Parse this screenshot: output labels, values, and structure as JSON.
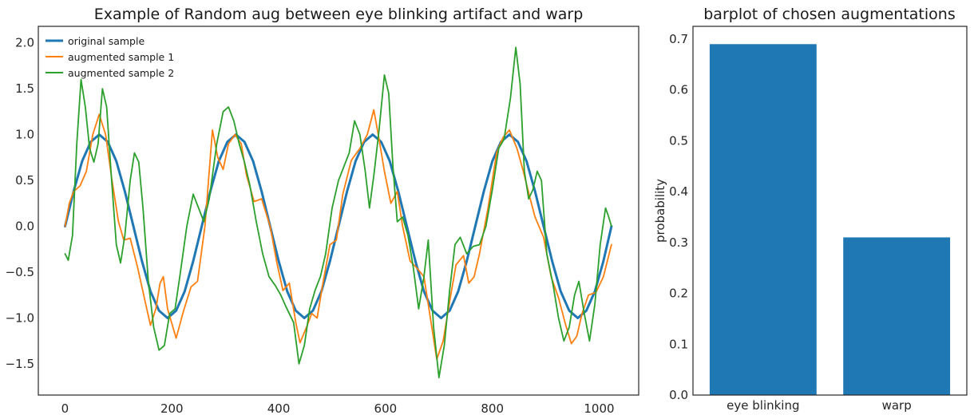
{
  "chart_data": [
    {
      "type": "line",
      "title": "Example of Random aug between eye blinking artifact and warp",
      "xlabel": "",
      "ylabel": "",
      "xlim": [
        -50,
        1074
      ],
      "ylim": [
        -1.84,
        2.18
      ],
      "xticks": [
        0,
        200,
        400,
        600,
        800,
        1000
      ],
      "xtick_labels": [
        "0",
        "200",
        "400",
        "600",
        "800",
        "1000"
      ],
      "yticks": [
        -1.5,
        -1.0,
        -0.5,
        0.0,
        0.5,
        1.0,
        1.5,
        2.0
      ],
      "ytick_labels": [
        "−1.5",
        "−1.0",
        "−0.5",
        "0.0",
        "0.5",
        "1.0",
        "1.5",
        "2.0"
      ],
      "grid": false,
      "legend_position": "top-left",
      "series": [
        {
          "name": "original sample",
          "color": "#1f77b4",
          "points": [
            [
              0,
              0.0
            ],
            [
              16,
              0.38
            ],
            [
              32,
              0.71
            ],
            [
              48,
              0.92
            ],
            [
              64,
              1.0
            ],
            [
              80,
              0.92
            ],
            [
              96,
              0.71
            ],
            [
              112,
              0.38
            ],
            [
              128,
              0.0
            ],
            [
              144,
              -0.38
            ],
            [
              160,
              -0.71
            ],
            [
              176,
              -0.92
            ],
            [
              192,
              -1.0
            ],
            [
              208,
              -0.92
            ],
            [
              224,
              -0.71
            ],
            [
              240,
              -0.38
            ],
            [
              256,
              0.0
            ],
            [
              272,
              0.38
            ],
            [
              288,
              0.71
            ],
            [
              304,
              0.92
            ],
            [
              320,
              1.0
            ],
            [
              336,
              0.92
            ],
            [
              352,
              0.71
            ],
            [
              368,
              0.38
            ],
            [
              384,
              0.0
            ],
            [
              400,
              -0.38
            ],
            [
              416,
              -0.71
            ],
            [
              432,
              -0.92
            ],
            [
              448,
              -1.0
            ],
            [
              464,
              -0.92
            ],
            [
              480,
              -0.71
            ],
            [
              496,
              -0.38
            ],
            [
              512,
              0.0
            ],
            [
              528,
              0.38
            ],
            [
              544,
              0.71
            ],
            [
              560,
              0.92
            ],
            [
              576,
              1.0
            ],
            [
              592,
              0.92
            ],
            [
              608,
              0.71
            ],
            [
              624,
              0.38
            ],
            [
              640,
              0.0
            ],
            [
              656,
              -0.38
            ],
            [
              672,
              -0.71
            ],
            [
              688,
              -0.92
            ],
            [
              704,
              -1.0
            ],
            [
              720,
              -0.92
            ],
            [
              736,
              -0.71
            ],
            [
              752,
              -0.38
            ],
            [
              768,
              0.0
            ],
            [
              784,
              0.38
            ],
            [
              800,
              0.71
            ],
            [
              816,
              0.92
            ],
            [
              832,
              1.0
            ],
            [
              848,
              0.92
            ],
            [
              864,
              0.71
            ],
            [
              880,
              0.38
            ],
            [
              896,
              0.0
            ],
            [
              912,
              -0.38
            ],
            [
              928,
              -0.71
            ],
            [
              944,
              -0.92
            ],
            [
              960,
              -1.0
            ],
            [
              976,
              -0.92
            ],
            [
              992,
              -0.71
            ],
            [
              1008,
              -0.38
            ],
            [
              1023,
              0.0
            ]
          ]
        },
        {
          "name": "augmented sample 1",
          "color": "#ff7f0e",
          "points": [
            [
              0,
              0.0
            ],
            [
              8,
              0.25
            ],
            [
              16,
              0.38
            ],
            [
              28,
              0.44
            ],
            [
              40,
              0.6
            ],
            [
              52,
              1.0
            ],
            [
              64,
              1.22
            ],
            [
              76,
              1.0
            ],
            [
              88,
              0.5
            ],
            [
              100,
              0.05
            ],
            [
              110,
              -0.15
            ],
            [
              122,
              -0.13
            ],
            [
              136,
              -0.45
            ],
            [
              150,
              -0.82
            ],
            [
              160,
              -1.08
            ],
            [
              170,
              -0.9
            ],
            [
              178,
              -0.62
            ],
            [
              184,
              -0.55
            ],
            [
              192,
              -0.9
            ],
            [
              208,
              -1.22
            ],
            [
              222,
              -0.92
            ],
            [
              236,
              -0.66
            ],
            [
              248,
              -0.6
            ],
            [
              262,
              0.0
            ],
            [
              276,
              1.05
            ],
            [
              286,
              0.75
            ],
            [
              296,
              0.62
            ],
            [
              306,
              0.9
            ],
            [
              318,
              1.0
            ],
            [
              330,
              0.9
            ],
            [
              340,
              0.55
            ],
            [
              354,
              0.27
            ],
            [
              368,
              0.3
            ],
            [
              384,
              0.0
            ],
            [
              396,
              -0.38
            ],
            [
              408,
              -0.7
            ],
            [
              420,
              -0.62
            ],
            [
              432,
              -1.05
            ],
            [
              440,
              -1.27
            ],
            [
              452,
              -1.1
            ],
            [
              462,
              -0.95
            ],
            [
              472,
              -1.0
            ],
            [
              482,
              -0.65
            ],
            [
              496,
              -0.2
            ],
            [
              508,
              -0.15
            ],
            [
              520,
              0.35
            ],
            [
              536,
              0.72
            ],
            [
              552,
              0.85
            ],
            [
              566,
              1.0
            ],
            [
              578,
              1.27
            ],
            [
              588,
              0.95
            ],
            [
              598,
              0.6
            ],
            [
              610,
              0.25
            ],
            [
              622,
              0.38
            ],
            [
              632,
              0.0
            ],
            [
              646,
              -0.38
            ],
            [
              658,
              -0.45
            ],
            [
              672,
              -0.55
            ],
            [
              684,
              -1.0
            ],
            [
              696,
              -1.45
            ],
            [
              708,
              -1.25
            ],
            [
              720,
              -0.82
            ],
            [
              732,
              -0.42
            ],
            [
              746,
              -0.32
            ],
            [
              756,
              -0.62
            ],
            [
              766,
              -0.55
            ],
            [
              776,
              -0.3
            ],
            [
              792,
              0.2
            ],
            [
              808,
              0.8
            ],
            [
              820,
              0.97
            ],
            [
              832,
              1.05
            ],
            [
              846,
              0.85
            ],
            [
              858,
              0.6
            ],
            [
              870,
              0.32
            ],
            [
              880,
              0.1
            ],
            [
              896,
              -0.12
            ],
            [
              910,
              -0.55
            ],
            [
              924,
              -0.78
            ],
            [
              936,
              -1.05
            ],
            [
              948,
              -1.28
            ],
            [
              958,
              -1.2
            ],
            [
              968,
              -0.95
            ],
            [
              980,
              -0.75
            ],
            [
              994,
              -0.72
            ],
            [
              1008,
              -0.55
            ],
            [
              1023,
              -0.2
            ]
          ]
        },
        {
          "name": "augmented sample 2",
          "color": "#2ca02c",
          "points": [
            [
              0,
              -0.3
            ],
            [
              6,
              -0.37
            ],
            [
              14,
              -0.1
            ],
            [
              22,
              0.9
            ],
            [
              30,
              1.6
            ],
            [
              38,
              1.3
            ],
            [
              46,
              0.85
            ],
            [
              54,
              0.7
            ],
            [
              62,
              0.9
            ],
            [
              70,
              1.5
            ],
            [
              78,
              1.3
            ],
            [
              86,
              0.6
            ],
            [
              96,
              -0.2
            ],
            [
              104,
              -0.4
            ],
            [
              112,
              -0.1
            ],
            [
              122,
              0.5
            ],
            [
              130,
              0.8
            ],
            [
              138,
              0.7
            ],
            [
              146,
              0.2
            ],
            [
              156,
              -0.6
            ],
            [
              166,
              -1.1
            ],
            [
              176,
              -1.35
            ],
            [
              186,
              -1.3
            ],
            [
              196,
              -0.95
            ],
            [
              206,
              -0.9
            ],
            [
              216,
              -0.5
            ],
            [
              228,
              0.0
            ],
            [
              240,
              0.35
            ],
            [
              250,
              0.2
            ],
            [
              260,
              0.05
            ],
            [
              270,
              0.3
            ],
            [
              284,
              0.9
            ],
            [
              296,
              1.25
            ],
            [
              306,
              1.3
            ],
            [
              316,
              1.15
            ],
            [
              326,
              0.9
            ],
            [
              336,
              0.7
            ],
            [
              346,
              0.45
            ],
            [
              358,
              0.05
            ],
            [
              370,
              -0.3
            ],
            [
              382,
              -0.55
            ],
            [
              394,
              -0.65
            ],
            [
              404,
              -0.75
            ],
            [
              414,
              -0.88
            ],
            [
              428,
              -1.05
            ],
            [
              438,
              -1.5
            ],
            [
              448,
              -1.3
            ],
            [
              458,
              -0.9
            ],
            [
              468,
              -0.7
            ],
            [
              478,
              -0.55
            ],
            [
              488,
              -0.3
            ],
            [
              500,
              0.2
            ],
            [
              512,
              0.5
            ],
            [
              522,
              0.65
            ],
            [
              532,
              0.8
            ],
            [
              542,
              1.15
            ],
            [
              552,
              1.0
            ],
            [
              562,
              0.6
            ],
            [
              570,
              0.2
            ],
            [
              578,
              0.55
            ],
            [
              588,
              1.05
            ],
            [
              598,
              1.65
            ],
            [
              606,
              1.45
            ],
            [
              614,
              0.65
            ],
            [
              622,
              0.05
            ],
            [
              632,
              0.1
            ],
            [
              642,
              -0.1
            ],
            [
              652,
              -0.45
            ],
            [
              662,
              -0.9
            ],
            [
              672,
              -0.55
            ],
            [
              680,
              -0.15
            ],
            [
              690,
              -1.1
            ],
            [
              700,
              -1.65
            ],
            [
              710,
              -1.3
            ],
            [
              720,
              -0.7
            ],
            [
              730,
              -0.2
            ],
            [
              740,
              -0.12
            ],
            [
              752,
              -0.3
            ],
            [
              764,
              -0.22
            ],
            [
              776,
              -0.2
            ],
            [
              788,
              0.0
            ],
            [
              800,
              0.4
            ],
            [
              812,
              0.85
            ],
            [
              822,
              0.95
            ],
            [
              834,
              1.4
            ],
            [
              844,
              1.95
            ],
            [
              852,
              1.55
            ],
            [
              860,
              0.6
            ],
            [
              868,
              0.3
            ],
            [
              876,
              0.4
            ],
            [
              884,
              0.6
            ],
            [
              892,
              0.5
            ],
            [
              902,
              -0.3
            ],
            [
              914,
              -0.65
            ],
            [
              924,
              -1.0
            ],
            [
              934,
              -1.25
            ],
            [
              944,
              -1.1
            ],
            [
              954,
              -0.75
            ],
            [
              962,
              -0.6
            ],
            [
              972,
              -0.95
            ],
            [
              982,
              -1.25
            ],
            [
              992,
              -0.85
            ],
            [
              1002,
              -0.2
            ],
            [
              1012,
              0.2
            ],
            [
              1018,
              0.1
            ],
            [
              1023,
              0.0
            ]
          ]
        }
      ]
    },
    {
      "type": "bar",
      "title": "barplot of chosen augmentations",
      "xlabel": "",
      "ylabel": "probability",
      "ylim": [
        0,
        0.725
      ],
      "yticks": [
        0.0,
        0.1,
        0.2,
        0.3,
        0.4,
        0.5,
        0.6,
        0.7
      ],
      "ytick_labels": [
        "0.0",
        "0.1",
        "0.2",
        "0.3",
        "0.4",
        "0.5",
        "0.6",
        "0.7"
      ],
      "grid": false,
      "categories": [
        "eye blinking",
        "warp"
      ],
      "values": [
        0.69,
        0.31
      ],
      "color": "#1f77b4"
    }
  ]
}
